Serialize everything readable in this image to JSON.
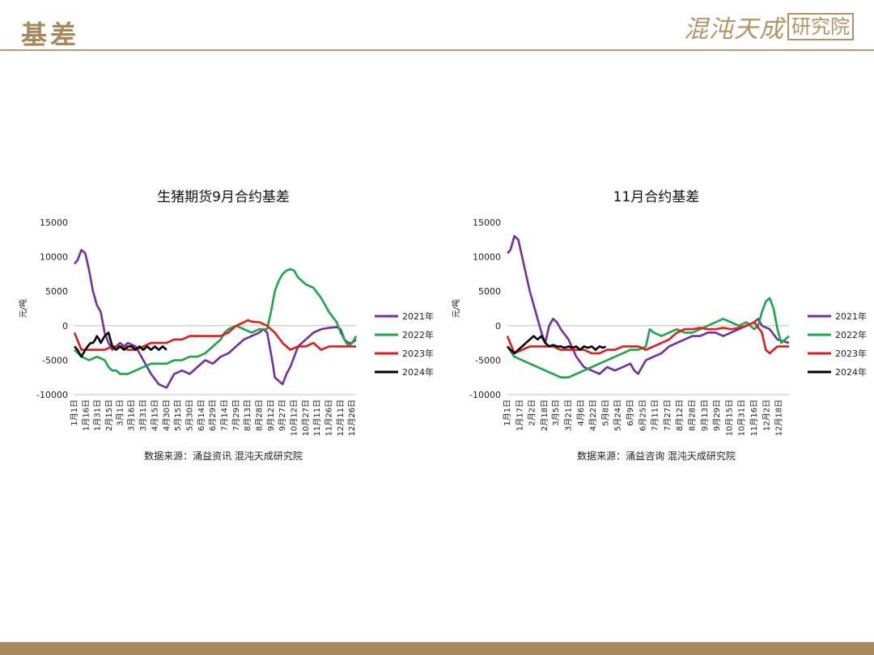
{
  "header": {
    "title": "基差"
  },
  "logo": {
    "main": "混沌天成",
    "box": "研究院"
  },
  "colors": {
    "2021": "#7030a0",
    "2022": "#1aa64a",
    "2023": "#e31a1a",
    "2024": "#000000",
    "brand": "#a88a5b"
  },
  "chart_data": [
    {
      "type": "line",
      "title": "生猪期货9月合约基差",
      "ylabel": "元/吨",
      "ylim": [
        -10000,
        15000
      ],
      "yticks": [
        -10000,
        -5000,
        0,
        5000,
        10000,
        15000
      ],
      "x_domain": [
        1,
        365
      ],
      "x_unit": "day_of_year",
      "tick_labels": [
        "1月1日",
        "1月16日",
        "1月31日",
        "2月15日",
        "3月1日",
        "3月16日",
        "3月31日",
        "4月15日",
        "4月30日",
        "5月15日",
        "5月30日",
        "6月14日",
        "6月29日",
        "7月14日",
        "7月29日",
        "8月13日",
        "8月28日",
        "9月12日",
        "9月27日",
        "10月12日",
        "10月27日",
        "11月11日",
        "11月26日",
        "12月11日",
        "12月26日"
      ],
      "tick_positions": [
        1,
        16,
        31,
        46,
        60,
        75,
        90,
        105,
        120,
        135,
        150,
        165,
        180,
        195,
        210,
        225,
        240,
        255,
        270,
        285,
        300,
        315,
        330,
        345,
        360
      ],
      "legend": [
        "2021年",
        "2022年",
        "2023年",
        "2024年"
      ],
      "source": "数据来源：涌益资讯  混沌天成研究院",
      "series": [
        {
          "name": "2021年",
          "color": "#7030a0",
          "x": [
            1,
            5,
            10,
            15,
            20,
            25,
            30,
            35,
            40,
            45,
            50,
            55,
            60,
            65,
            70,
            80,
            90,
            100,
            110,
            120,
            130,
            140,
            150,
            160,
            170,
            180,
            190,
            200,
            210,
            220,
            230,
            240,
            245,
            250,
            255,
            258,
            260,
            265,
            270,
            275,
            280,
            290,
            300,
            310,
            320,
            330,
            340,
            345,
            350,
            355,
            360,
            365
          ],
          "y": [
            9000,
            9500,
            11000,
            10500,
            8000,
            5000,
            3000,
            2000,
            -1000,
            -2500,
            -3500,
            -3000,
            -2500,
            -3000,
            -2500,
            -3000,
            -5000,
            -7000,
            -8500,
            -9000,
            -7000,
            -6500,
            -7000,
            -6000,
            -5000,
            -5500,
            -4500,
            -4000,
            -3000,
            -2000,
            -1500,
            -1000,
            -500,
            -1000,
            -4000,
            -6000,
            -7500,
            -8000,
            -8500,
            -7000,
            -6000,
            -3000,
            -2000,
            -1000,
            -500,
            -300,
            -200,
            -500,
            -2000,
            -2500,
            -2500,
            -2000
          ]
        },
        {
          "name": "2022年",
          "color": "#1aa64a",
          "x": [
            1,
            10,
            20,
            30,
            40,
            45,
            50,
            55,
            60,
            70,
            80,
            90,
            100,
            110,
            120,
            130,
            140,
            150,
            160,
            170,
            180,
            190,
            195,
            200,
            210,
            220,
            230,
            240,
            250,
            255,
            260,
            265,
            270,
            275,
            280,
            285,
            290,
            295,
            300,
            310,
            320,
            330,
            340,
            345,
            350,
            355,
            360,
            365
          ],
          "y": [
            -3500,
            -4500,
            -5000,
            -4500,
            -5000,
            -6000,
            -6500,
            -6500,
            -7000,
            -7000,
            -6500,
            -6000,
            -5500,
            -5500,
            -5500,
            -5000,
            -5000,
            -4500,
            -4500,
            -4000,
            -3000,
            -2000,
            -1000,
            -500,
            0,
            -500,
            -1000,
            -500,
            -500,
            2000,
            5000,
            6500,
            7500,
            8000,
            8200,
            8000,
            7000,
            6500,
            6000,
            5500,
            4000,
            2000,
            500,
            -1000,
            -2000,
            -3000,
            -2500,
            -1500
          ]
        },
        {
          "name": "2023年",
          "color": "#e31a1a",
          "x": [
            1,
            10,
            20,
            30,
            40,
            50,
            60,
            70,
            80,
            90,
            100,
            110,
            120,
            130,
            140,
            150,
            160,
            170,
            180,
            190,
            200,
            210,
            220,
            225,
            230,
            240,
            250,
            255,
            260,
            270,
            280,
            290,
            300,
            310,
            320,
            330,
            340,
            350,
            360,
            365
          ],
          "y": [
            -1000,
            -3500,
            -3500,
            -3500,
            -3500,
            -3000,
            -3000,
            -3500,
            -3500,
            -3000,
            -2500,
            -2500,
            -2500,
            -2000,
            -2000,
            -1500,
            -1500,
            -1500,
            -1500,
            -1500,
            -1000,
            0,
            500,
            800,
            600,
            500,
            0,
            -500,
            -1000,
            -2500,
            -3500,
            -3000,
            -3000,
            -2500,
            -3500,
            -3000,
            -3000,
            -3000,
            -3000,
            -3000
          ]
        },
        {
          "name": "2024年",
          "color": "#000000",
          "x": [
            1,
            5,
            10,
            15,
            18,
            22,
            25,
            28,
            30,
            33,
            35,
            40,
            45,
            50,
            55,
            60,
            65,
            70,
            75,
            80,
            85,
            90,
            95,
            100,
            105,
            110,
            115,
            120
          ],
          "y": [
            -3000,
            -3500,
            -4500,
            -3500,
            -3000,
            -2500,
            -2500,
            -2000,
            -1500,
            -2000,
            -2500,
            -1500,
            -1000,
            -3000,
            -3500,
            -3000,
            -3500,
            -3000,
            -3000,
            -3500,
            -3000,
            -3500,
            -3000,
            -3500,
            -3000,
            -3500,
            -3000,
            -3500
          ]
        }
      ]
    },
    {
      "type": "line",
      "title": "11月合约基差",
      "ylabel": "元/吨",
      "ylim": [
        -10000,
        15000
      ],
      "yticks": [
        -10000,
        -5000,
        0,
        5000,
        10000,
        15000
      ],
      "x_domain": [
        1,
        365
      ],
      "x_unit": "day_of_year",
      "tick_labels": [
        "1月1日",
        "1月17日",
        "2月2日",
        "2月18日",
        "3月5日",
        "3月21日",
        "4月6日",
        "4月22日",
        "5月8日",
        "5月24日",
        "6月9日",
        "6月25日",
        "7月11日",
        "7月27日",
        "8月12日",
        "8月28日",
        "9月13日",
        "9月29日",
        "10月15日",
        "10月31日",
        "11月16日",
        "12月2日",
        "12月18日"
      ],
      "tick_positions": [
        1,
        17,
        33,
        49,
        64,
        80,
        96,
        112,
        128,
        144,
        160,
        176,
        192,
        208,
        224,
        240,
        256,
        272,
        288,
        304,
        320,
        336,
        352
      ],
      "legend": [
        "2021年",
        "2022年",
        "2023年",
        "2024年"
      ],
      "source": "数据来源：涌益咨询  混沌天成研究院",
      "series": [
        {
          "name": "2021年",
          "color": "#7030a0",
          "x": [
            1,
            5,
            10,
            15,
            20,
            25,
            30,
            35,
            40,
            45,
            50,
            55,
            60,
            65,
            70,
            80,
            90,
            100,
            110,
            120,
            130,
            140,
            150,
            160,
            165,
            170,
            180,
            190,
            200,
            210,
            220,
            230,
            240,
            250,
            260,
            270,
            280,
            290,
            300,
            310,
            320,
            325,
            330,
            340,
            350,
            365
          ],
          "y": [
            10500,
            11000,
            13000,
            12500,
            10000,
            7500,
            5000,
            3000,
            1000,
            -1000,
            -2500,
            0,
            1000,
            500,
            -500,
            -2000,
            -4500,
            -6000,
            -6500,
            -7000,
            -6000,
            -6500,
            -6000,
            -5500,
            -6500,
            -7000,
            -5000,
            -4500,
            -4000,
            -3000,
            -2500,
            -2000,
            -1500,
            -1500,
            -1000,
            -1000,
            -1500,
            -1000,
            -500,
            0,
            500,
            1000,
            0,
            -500,
            -2000,
            -2500
          ]
        },
        {
          "name": "2022年",
          "color": "#1aa64a",
          "x": [
            1,
            10,
            20,
            30,
            40,
            50,
            60,
            70,
            80,
            90,
            100,
            110,
            120,
            130,
            140,
            150,
            160,
            170,
            180,
            185,
            190,
            200,
            210,
            220,
            230,
            240,
            250,
            260,
            270,
            280,
            290,
            300,
            310,
            320,
            325,
            330,
            335,
            340,
            345,
            350,
            355,
            360,
            365
          ],
          "y": [
            -3000,
            -4500,
            -5000,
            -5500,
            -6000,
            -6500,
            -7000,
            -7500,
            -7500,
            -7000,
            -6500,
            -6000,
            -5500,
            -5000,
            -4500,
            -4000,
            -3500,
            -3500,
            -3000,
            -500,
            -1000,
            -1500,
            -1000,
            -500,
            -1000,
            -1000,
            -500,
            0,
            500,
            1000,
            500,
            0,
            500,
            -500,
            0,
            2000,
            3500,
            4000,
            2500,
            -500,
            -2500,
            -2000,
            -1500
          ]
        },
        {
          "name": "2023年",
          "color": "#e31a1a",
          "x": [
            1,
            10,
            20,
            30,
            40,
            50,
            60,
            70,
            80,
            90,
            100,
            110,
            120,
            130,
            140,
            150,
            160,
            170,
            180,
            190,
            200,
            210,
            220,
            230,
            240,
            250,
            260,
            270,
            280,
            290,
            300,
            310,
            320,
            330,
            335,
            340,
            345,
            350,
            355,
            360,
            365
          ],
          "y": [
            -1500,
            -4000,
            -3500,
            -3000,
            -3000,
            -3000,
            -3000,
            -3500,
            -3500,
            -3500,
            -3500,
            -4000,
            -4000,
            -3500,
            -3500,
            -3000,
            -3000,
            -3000,
            -3500,
            -3000,
            -2500,
            -2000,
            -1000,
            -500,
            -500,
            -300,
            -500,
            -500,
            -300,
            -500,
            -300,
            0,
            500,
            -1000,
            -3500,
            -4000,
            -3500,
            -3000,
            -3000,
            -3000,
            -3000
          ]
        },
        {
          "name": "2024年",
          "color": "#000000",
          "x": [
            1,
            5,
            10,
            15,
            20,
            25,
            30,
            35,
            40,
            45,
            50,
            55,
            60,
            65,
            70,
            75,
            80,
            85,
            90,
            95,
            100,
            105,
            110,
            115,
            120,
            125,
            128
          ],
          "y": [
            -3000,
            -3500,
            -4000,
            -3500,
            -3000,
            -2500,
            -2000,
            -1500,
            -2000,
            -1500,
            -2500,
            -3000,
            -2800,
            -3000,
            -3000,
            -3200,
            -3000,
            -3200,
            -3000,
            -3500,
            -3000,
            -3200,
            -3000,
            -3500,
            -3000,
            -3200,
            -3000
          ]
        }
      ]
    }
  ]
}
